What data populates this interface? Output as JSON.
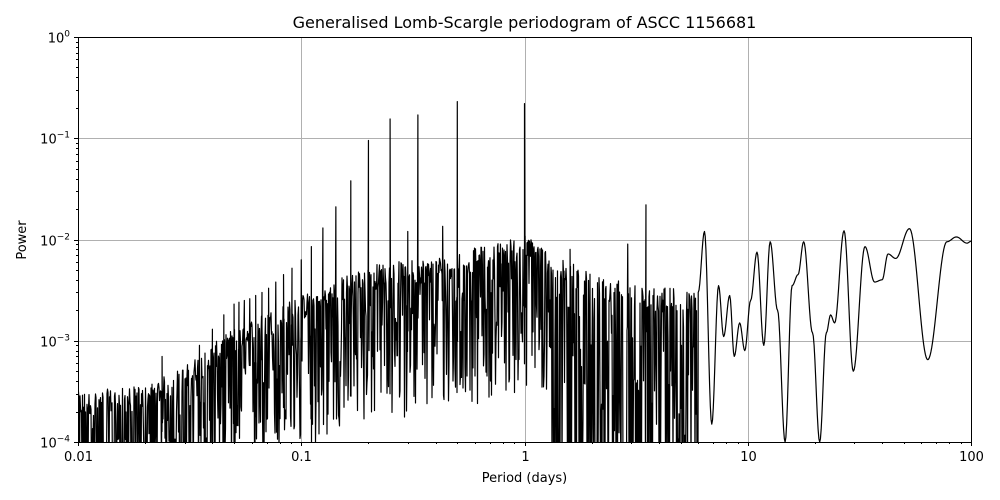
{
  "chart_data": {
    "type": "line",
    "title": "Generalised Lomb-Scargle periodogram of ASCC 1156681",
    "xlabel": "Period (days)",
    "ylabel": "Power",
    "xscale": "log",
    "yscale": "log",
    "xlim": [
      0.01,
      100
    ],
    "ylim": [
      0.0001,
      1
    ],
    "grid": true,
    "legend": null,
    "x_ticks": [
      {
        "value": 0.01,
        "label": "0.01"
      },
      {
        "value": 0.1,
        "label": "0.1"
      },
      {
        "value": 1,
        "label": "1"
      },
      {
        "value": 10,
        "label": "10"
      },
      {
        "value": 100,
        "label": "100"
      }
    ],
    "y_ticks": [
      {
        "value": 0.0001,
        "base": "10",
        "exp": "−4"
      },
      {
        "value": 0.001,
        "base": "10",
        "exp": "−3"
      },
      {
        "value": 0.01,
        "base": "10",
        "exp": "−2"
      },
      {
        "value": 0.1,
        "base": "10",
        "exp": "−1"
      },
      {
        "value": 1,
        "base": "10",
        "exp": "0"
      }
    ],
    "line_color": "#000000",
    "grid_color": "#b0b0b0",
    "noise_envelope": [
      {
        "period": 0.01,
        "power": 0.00028
      },
      {
        "period": 0.02,
        "power": 0.00032
      },
      {
        "period": 0.03,
        "power": 0.0005
      },
      {
        "period": 0.05,
        "power": 0.0012
      },
      {
        "period": 0.1,
        "power": 0.0025
      },
      {
        "period": 0.2,
        "power": 0.005
      },
      {
        "period": 0.4,
        "power": 0.006
      },
      {
        "period": 0.7,
        "power": 0.008
      },
      {
        "period": 1.0,
        "power": 0.01
      },
      {
        "period": 2.0,
        "power": 0.004
      },
      {
        "period": 4.0,
        "power": 0.003
      },
      {
        "period": 6.0,
        "power": 0.003
      }
    ],
    "peaks": [
      {
        "period": 0.5,
        "power": 0.23
      },
      {
        "period": 1.0,
        "power": 0.22
      },
      {
        "period": 0.333,
        "power": 0.17
      },
      {
        "period": 0.25,
        "power": 0.155
      },
      {
        "period": 0.2,
        "power": 0.095
      },
      {
        "period": 0.1667,
        "power": 0.038
      },
      {
        "period": 0.1429,
        "power": 0.021
      },
      {
        "period": 0.125,
        "power": 0.013
      },
      {
        "period": 0.111,
        "power": 0.0085
      },
      {
        "period": 0.1,
        "power": 0.0063
      },
      {
        "period": 0.0909,
        "power": 0.0052
      },
      {
        "period": 0.0833,
        "power": 0.0045
      },
      {
        "period": 0.0769,
        "power": 0.0038
      },
      {
        "period": 0.0714,
        "power": 0.0033
      },
      {
        "period": 0.0667,
        "power": 0.003
      },
      {
        "period": 0.0625,
        "power": 0.0028
      },
      {
        "period": 0.0588,
        "power": 0.0026
      },
      {
        "period": 0.0556,
        "power": 0.0025
      },
      {
        "period": 0.0526,
        "power": 0.0024
      },
      {
        "period": 0.05,
        "power": 0.0023
      },
      {
        "period": 0.045,
        "power": 0.0018
      },
      {
        "period": 0.04,
        "power": 0.0013
      },
      {
        "period": 0.035,
        "power": 0.0009
      },
      {
        "period": 0.0238,
        "power": 0.0007
      },
      {
        "period": 0.3,
        "power": 0.012
      },
      {
        "period": 0.43,
        "power": 0.0135
      },
      {
        "period": 0.78,
        "power": 0.009
      },
      {
        "period": 3.5,
        "power": 0.022
      },
      {
        "period": 2.9,
        "power": 0.009
      },
      {
        "period": 1.6,
        "power": 0.008
      },
      {
        "period": 6.4,
        "power": 0.012
      }
    ],
    "smooth_region": [
      {
        "period": 6.0,
        "power": 0.003
      },
      {
        "period": 6.4,
        "power": 0.012
      },
      {
        "period": 6.9,
        "power": 0.00015
      },
      {
        "period": 7.4,
        "power": 0.0035
      },
      {
        "period": 7.8,
        "power": 0.0011
      },
      {
        "period": 8.3,
        "power": 0.0028
      },
      {
        "period": 8.7,
        "power": 0.0007
      },
      {
        "period": 9.2,
        "power": 0.0015
      },
      {
        "period": 9.7,
        "power": 0.0008
      },
      {
        "period": 10.3,
        "power": 0.0025
      },
      {
        "period": 11.0,
        "power": 0.0075
      },
      {
        "period": 11.8,
        "power": 0.0009
      },
      {
        "period": 12.6,
        "power": 0.0095
      },
      {
        "period": 13.6,
        "power": 0.002
      },
      {
        "period": 14.7,
        "power": 0.0001
      },
      {
        "period": 15.8,
        "power": 0.0035
      },
      {
        "period": 16.8,
        "power": 0.0045
      },
      {
        "period": 17.8,
        "power": 0.0095
      },
      {
        "period": 19.5,
        "power": 0.0012
      },
      {
        "period": 21.0,
        "power": 0.0001
      },
      {
        "period": 22.5,
        "power": 0.0012
      },
      {
        "period": 23.5,
        "power": 0.0018
      },
      {
        "period": 24.5,
        "power": 0.0015
      },
      {
        "period": 27.0,
        "power": 0.0122
      },
      {
        "period": 29.7,
        "power": 0.0005
      },
      {
        "period": 33.5,
        "power": 0.0085
      },
      {
        "period": 37.0,
        "power": 0.0038
      },
      {
        "period": 40.0,
        "power": 0.004
      },
      {
        "period": 42.5,
        "power": 0.0072
      },
      {
        "period": 46.0,
        "power": 0.0065
      },
      {
        "period": 53.0,
        "power": 0.0128
      },
      {
        "period": 64.0,
        "power": 0.00065
      },
      {
        "period": 78.0,
        "power": 0.0095
      },
      {
        "period": 86.0,
        "power": 0.0106
      },
      {
        "period": 96.0,
        "power": 0.0092
      },
      {
        "period": 100.0,
        "power": 0.0096
      }
    ]
  }
}
